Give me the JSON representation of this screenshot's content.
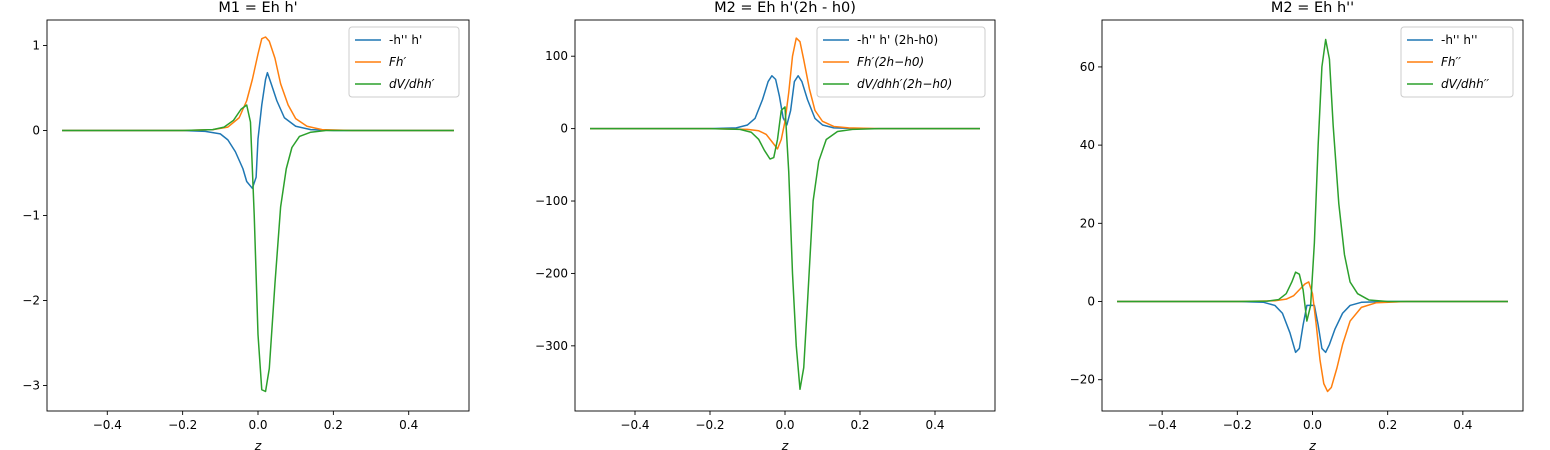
{
  "colors": {
    "blue": "#1f77b4",
    "orange": "#ff7f0e",
    "green": "#2ca02c"
  },
  "chart_data": [
    {
      "type": "line",
      "title": "M1 = Eh h'",
      "xlabel": "z",
      "ylabel": "",
      "xlim": [
        -0.56,
        0.56
      ],
      "ylim": [
        -3.3,
        1.3
      ],
      "xticks": [
        -0.4,
        -0.2,
        0.0,
        0.2,
        0.4
      ],
      "yticks": [
        -3,
        -2,
        -1,
        0,
        1
      ],
      "grid": false,
      "legend_position": "upper-right",
      "series": [
        {
          "name": "-h'' h'",
          "color": "#1f77b4",
          "x": [
            -0.52,
            -0.2,
            -0.14,
            -0.1,
            -0.08,
            -0.06,
            -0.04,
            -0.03,
            -0.015,
            -0.005,
            0.0,
            0.01,
            0.02,
            0.025,
            0.035,
            0.05,
            0.07,
            0.1,
            0.14,
            0.2,
            0.52
          ],
          "y": [
            0,
            0,
            -0.01,
            -0.04,
            -0.11,
            -0.25,
            -0.45,
            -0.6,
            -0.68,
            -0.55,
            -0.1,
            0.3,
            0.6,
            0.68,
            0.55,
            0.35,
            0.15,
            0.05,
            0.01,
            0,
            0
          ]
        },
        {
          "name": "Fh′",
          "color": "#ff7f0e",
          "x": [
            -0.52,
            -0.2,
            -0.12,
            -0.08,
            -0.05,
            -0.03,
            -0.015,
            0.0,
            0.01,
            0.02,
            0.03,
            0.045,
            0.06,
            0.08,
            0.1,
            0.13,
            0.17,
            0.25,
            0.52
          ],
          "y": [
            0,
            0,
            0.01,
            0.04,
            0.15,
            0.35,
            0.6,
            0.9,
            1.08,
            1.1,
            1.05,
            0.85,
            0.55,
            0.3,
            0.14,
            0.05,
            0.01,
            0,
            0
          ]
        },
        {
          "name": "dV/dhh′",
          "color": "#2ca02c",
          "x": [
            -0.52,
            -0.2,
            -0.12,
            -0.09,
            -0.065,
            -0.045,
            -0.03,
            -0.02,
            -0.01,
            0.0,
            0.01,
            0.02,
            0.03,
            0.045,
            0.06,
            0.075,
            0.09,
            0.11,
            0.14,
            0.18,
            0.25,
            0.52
          ],
          "y": [
            0,
            0,
            0.01,
            0.04,
            0.12,
            0.25,
            0.3,
            0.1,
            -1.0,
            -2.4,
            -3.05,
            -3.07,
            -2.8,
            -1.8,
            -0.9,
            -0.45,
            -0.2,
            -0.07,
            -0.02,
            0,
            0,
            0
          ]
        }
      ]
    },
    {
      "type": "line",
      "title": "M2 = Eh h'(2h - h0)",
      "xlabel": "z",
      "ylabel": "",
      "xlim": [
        -0.56,
        0.56
      ],
      "ylim": [
        -390,
        150
      ],
      "xticks": [
        -0.4,
        -0.2,
        0.0,
        0.2,
        0.4
      ],
      "yticks": [
        -300,
        -200,
        -100,
        0,
        100
      ],
      "grid": false,
      "legend_position": "upper-right",
      "series": [
        {
          "name": "-h'' h' (2h-h0)",
          "color": "#1f77b4",
          "x": [
            -0.52,
            -0.2,
            -0.13,
            -0.1,
            -0.08,
            -0.06,
            -0.045,
            -0.035,
            -0.025,
            -0.015,
            -0.005,
            0.005,
            0.015,
            0.025,
            0.035,
            0.045,
            0.06,
            0.08,
            0.1,
            0.13,
            0.2,
            0.52
          ],
          "y": [
            0,
            0,
            1,
            5,
            14,
            40,
            65,
            73,
            68,
            45,
            15,
            5,
            25,
            65,
            73,
            65,
            40,
            14,
            5,
            1,
            0,
            0
          ]
        },
        {
          "name": "Fh′(2h−h0)",
          "color": "#ff7f0e",
          "x": [
            -0.52,
            -0.2,
            -0.1,
            -0.07,
            -0.05,
            -0.035,
            -0.02,
            -0.01,
            0.0,
            0.01,
            0.02,
            0.03,
            0.04,
            0.05,
            0.065,
            0.08,
            0.1,
            0.13,
            0.17,
            0.25,
            0.52
          ],
          "y": [
            0,
            0,
            -1,
            -3,
            -8,
            -18,
            -28,
            -15,
            10,
            50,
            100,
            125,
            120,
            95,
            55,
            25,
            10,
            3,
            1,
            0,
            0
          ]
        },
        {
          "name": "dV/dhh′(2h−h0)",
          "color": "#2ca02c",
          "x": [
            -0.52,
            -0.2,
            -0.12,
            -0.09,
            -0.07,
            -0.055,
            -0.04,
            -0.03,
            -0.02,
            -0.01,
            0.0,
            0.01,
            0.02,
            0.03,
            0.04,
            0.05,
            0.06,
            0.075,
            0.09,
            0.11,
            0.14,
            0.18,
            0.25,
            0.52
          ],
          "y": [
            0,
            0,
            -1,
            -5,
            -15,
            -30,
            -42,
            -40,
            -15,
            25,
            30,
            -60,
            -200,
            -300,
            -360,
            -330,
            -240,
            -100,
            -45,
            -15,
            -4,
            -1,
            0,
            0
          ]
        }
      ]
    },
    {
      "type": "line",
      "title": "M2 = Eh h''",
      "xlabel": "z",
      "ylabel": "",
      "xlim": [
        -0.56,
        0.56
      ],
      "ylim": [
        -28,
        72
      ],
      "xticks": [
        -0.4,
        -0.2,
        0.0,
        0.2,
        0.4
      ],
      "yticks": [
        -20,
        0,
        20,
        40,
        60
      ],
      "grid": false,
      "legend_position": "upper-right",
      "series": [
        {
          "name": "-h'' h''",
          "color": "#1f77b4",
          "x": [
            -0.52,
            -0.2,
            -0.13,
            -0.1,
            -0.08,
            -0.06,
            -0.045,
            -0.035,
            -0.025,
            -0.015,
            -0.005,
            0.005,
            0.015,
            0.025,
            0.035,
            0.045,
            0.06,
            0.08,
            0.1,
            0.13,
            0.2,
            0.52
          ],
          "y": [
            0,
            0,
            -0.2,
            -1,
            -3,
            -8,
            -13,
            -12,
            -6,
            -1,
            -1,
            -1,
            -6,
            -12,
            -13,
            -11,
            -7,
            -3,
            -1,
            -0.2,
            0,
            0
          ]
        },
        {
          "name": "Fh′′",
          "color": "#ff7f0e",
          "x": [
            -0.52,
            -0.2,
            -0.1,
            -0.07,
            -0.05,
            -0.035,
            -0.02,
            -0.01,
            0.0,
            0.01,
            0.02,
            0.03,
            0.04,
            0.05,
            0.065,
            0.08,
            0.1,
            0.13,
            0.17,
            0.25,
            0.52
          ],
          "y": [
            0,
            0,
            0.2,
            0.6,
            1.5,
            3,
            4.5,
            5,
            2,
            -6,
            -15,
            -21,
            -23,
            -22,
            -17,
            -11,
            -5,
            -1.5,
            -0.3,
            0,
            0
          ]
        },
        {
          "name": "dV/dhh′′",
          "color": "#2ca02c",
          "x": [
            -0.52,
            -0.2,
            -0.12,
            -0.09,
            -0.07,
            -0.055,
            -0.045,
            -0.035,
            -0.025,
            -0.015,
            -0.005,
            0.005,
            0.015,
            0.025,
            0.035,
            0.045,
            0.055,
            0.07,
            0.085,
            0.1,
            0.12,
            0.15,
            0.2,
            0.52
          ],
          "y": [
            0,
            0,
            0.1,
            0.5,
            2,
            5,
            7.5,
            7,
            3,
            -5,
            -1,
            15,
            40,
            60,
            67,
            62,
            45,
            25,
            12,
            5,
            2,
            0.4,
            0,
            0
          ]
        }
      ]
    }
  ]
}
